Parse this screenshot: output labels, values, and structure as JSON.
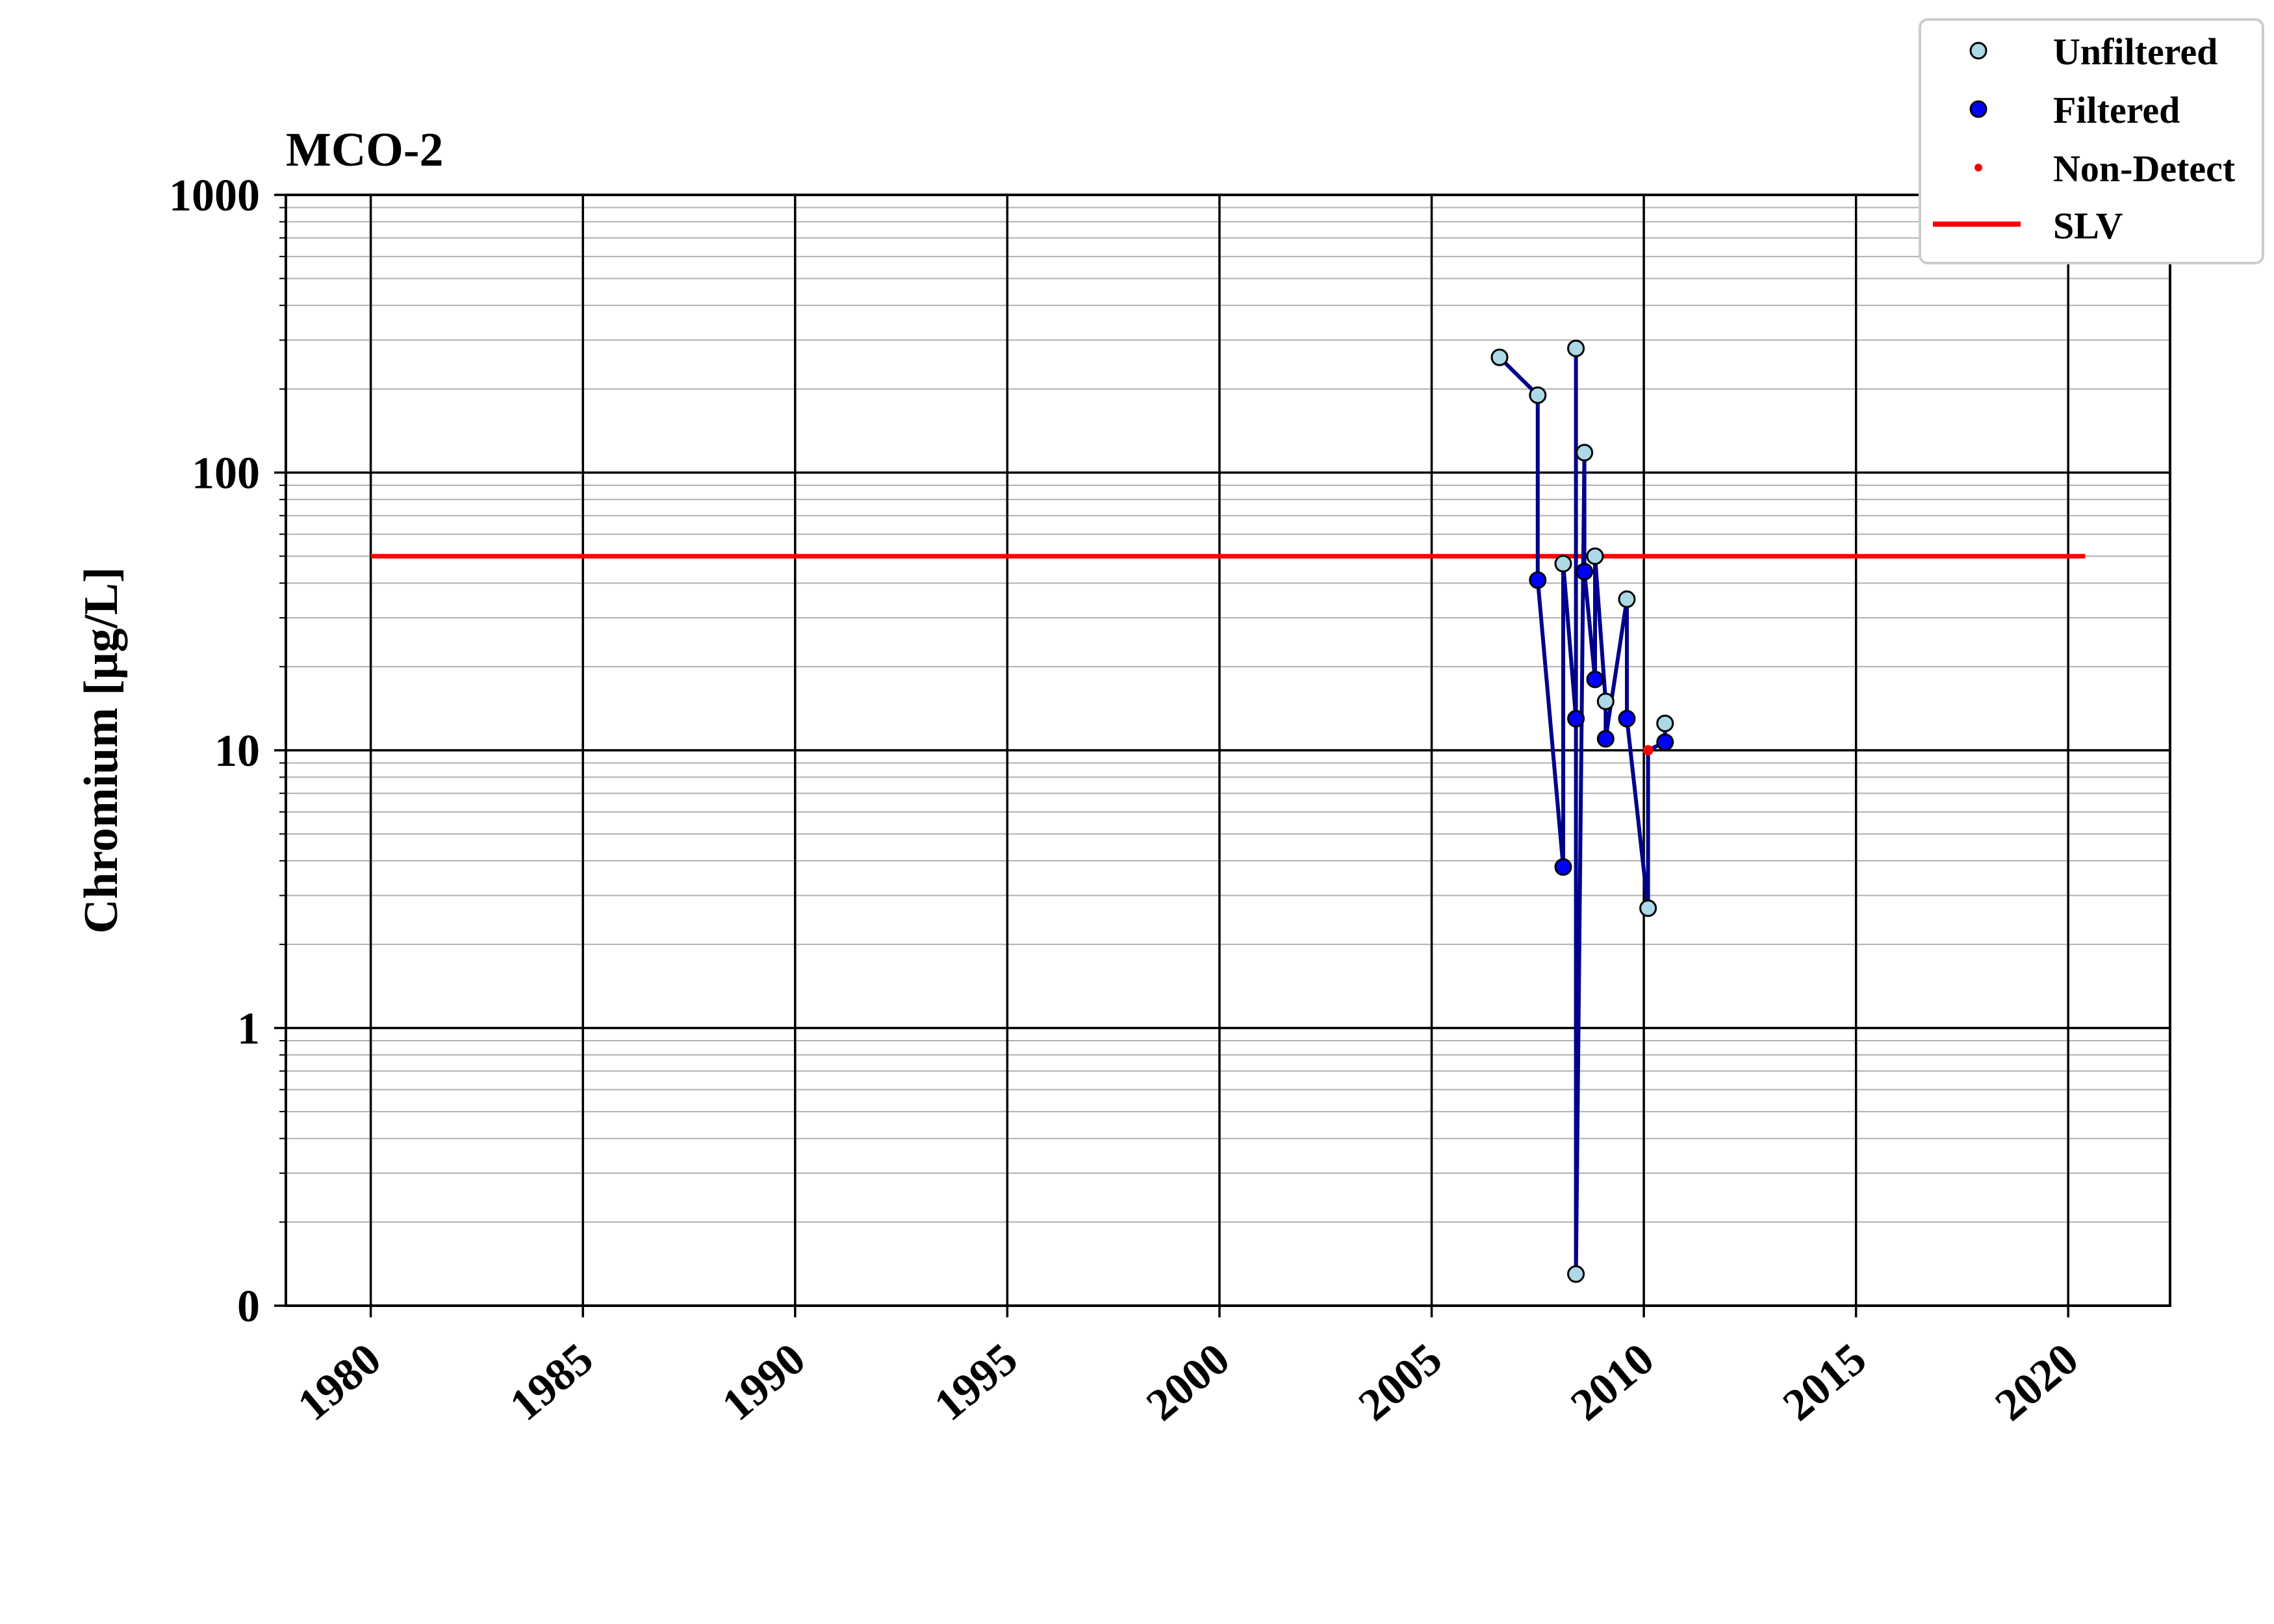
{
  "chart_data": {
    "type": "line",
    "title": "MCO-2",
    "xlabel": "",
    "ylabel": "Chromium [μg/L]",
    "xlim": [
      1978.0,
      2022.4
    ],
    "ylim_log10": [
      -1,
      3
    ],
    "y_scale": "log",
    "grid": "major and minor",
    "legend_position": "top-right",
    "x_ticks": [
      1980,
      1985,
      1990,
      1995,
      2000,
      2005,
      2010,
      2015,
      2020
    ],
    "x_tick_labels": [
      "1980",
      "1985",
      "1990",
      "1995",
      "2000",
      "2005",
      "2010",
      "2015",
      "2020"
    ],
    "y_ticks": [
      0.1,
      1,
      10,
      100,
      1000
    ],
    "y_tick_labels": [
      "0",
      "1",
      "10",
      "100",
      "1000"
    ],
    "colors": {
      "line": "#00008b",
      "unfiltered": "#add8e6",
      "filtered": "#0000ff",
      "non_detect": "#ff0000",
      "slv": "#ff0000"
    },
    "legend": [
      "Unfiltered",
      "Filtered",
      "Non-Detect",
      "SLV"
    ],
    "series": [
      {
        "name": "Unfiltered",
        "points": [
          [
            2006.6,
            260
          ],
          [
            2007.5,
            190
          ],
          [
            2008.1,
            47
          ],
          [
            2008.4,
            280
          ],
          [
            2008.4,
            0.13
          ],
          [
            2008.6,
            118
          ],
          [
            2008.85,
            50
          ],
          [
            2009.1,
            15
          ],
          [
            2009.6,
            35
          ],
          [
            2010.1,
            2.7
          ],
          [
            2010.5,
            12.5
          ]
        ]
      },
      {
        "name": "Filtered",
        "points": [
          [
            2007.5,
            41
          ],
          [
            2008.1,
            3.8
          ],
          [
            2008.4,
            13
          ],
          [
            2008.6,
            44
          ],
          [
            2008.85,
            18
          ],
          [
            2009.1,
            11
          ],
          [
            2009.6,
            13
          ],
          [
            2010.5,
            10.7
          ]
        ]
      },
      {
        "name": "Non-Detect",
        "points": [
          [
            2010.1,
            10
          ]
        ]
      },
      {
        "name": "SLV",
        "points": [
          [
            1980,
            50
          ],
          [
            2020.4,
            50
          ]
        ]
      }
    ],
    "connecting_line": [
      [
        2006.6,
        260
      ],
      [
        2007.5,
        190
      ],
      [
        2007.5,
        41
      ],
      [
        2008.1,
        3.8
      ],
      [
        2008.1,
        47
      ],
      [
        2008.4,
        13
      ],
      [
        2008.4,
        280
      ],
      [
        2008.4,
        0.13
      ],
      [
        2008.6,
        118
      ],
      [
        2008.6,
        44
      ],
      [
        2008.85,
        18
      ],
      [
        2008.85,
        50
      ],
      [
        2009.1,
        15
      ],
      [
        2009.1,
        11
      ],
      [
        2009.6,
        35
      ],
      [
        2009.6,
        13
      ],
      [
        2010.1,
        2.7
      ],
      [
        2010.1,
        10
      ],
      [
        2010.5,
        10.7
      ],
      [
        2010.5,
        12.5
      ]
    ]
  }
}
